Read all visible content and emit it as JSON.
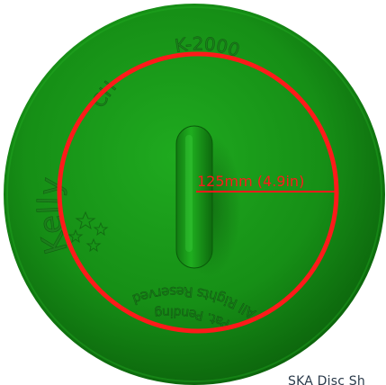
{
  "product": {
    "measurement_label": "125mm (4.9in)",
    "emboss_model": "K-2000",
    "emboss_top_left": "CH",
    "emboss_brand": "Kelly",
    "emboss_rights": "All Rights Reserved",
    "emboss_bottom": "Pat. Pending"
  },
  "caption": {
    "text": "SKA Disc Sh"
  },
  "colors": {
    "disc_green": "#169416",
    "disc_dark": "#0c640c",
    "measure_red": "#ff1a1a",
    "background": "#ffffff"
  }
}
